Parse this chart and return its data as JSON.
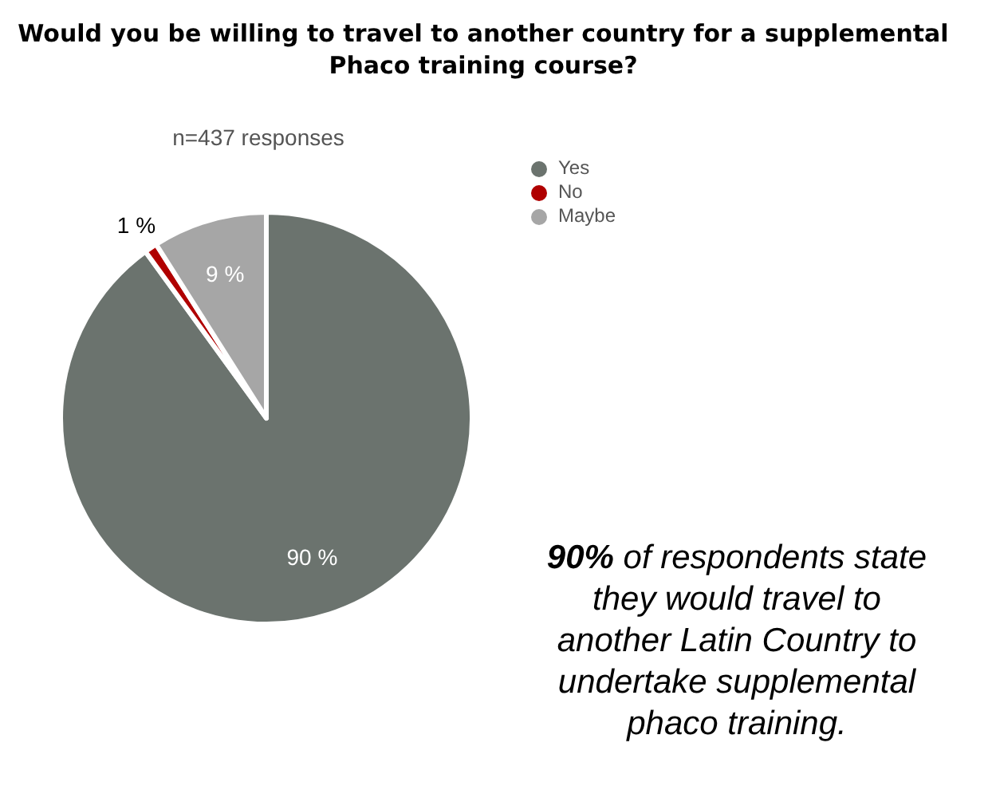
{
  "chart_data": {
    "type": "pie",
    "title": "Would you be willing to travel to another country for a supplemental Phaco training course?",
    "subtitle": "n=437 responses",
    "categories": [
      "Yes",
      "No",
      "Maybe"
    ],
    "values": [
      90,
      1,
      9
    ],
    "colors": [
      "#6b736e",
      "#b00000",
      "#a6a6a6"
    ],
    "value_labels": [
      "90 %",
      "1 %",
      "9 %"
    ],
    "legend": "top right",
    "annotations": [
      "90% of respondents state they would travel to another Latin Country to undertake supplemental phaco training."
    ]
  }
}
